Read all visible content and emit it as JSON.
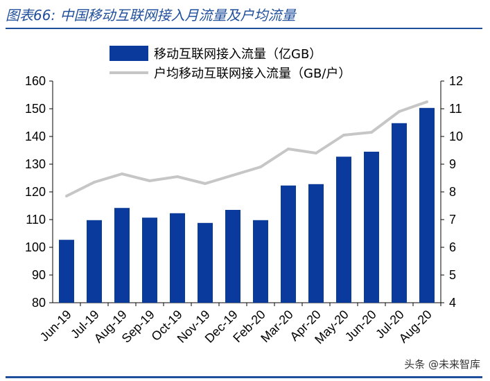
{
  "title": "图表66:  中国移动互联网接入月流量及户均流量",
  "watermark": "头条 @未来智库",
  "colors": {
    "bar": "#0a3a9c",
    "line": "#c6c6c6",
    "title": "#1f4e9b"
  },
  "chart_data": {
    "type": "bar",
    "categories": [
      "Jun-19",
      "Jul-19",
      "Aug-19",
      "Sep-19",
      "Oct-19",
      "Nov-19",
      "Dec-19",
      "Feb-20",
      "Mar-20",
      "Apr-20",
      "May-20",
      "Jun-20",
      "Jul-20",
      "Aug-20"
    ],
    "series": [
      {
        "name": "移动互联网接入流量（亿GB）",
        "type": "bar",
        "axis": "left",
        "values": [
          102.7,
          109.8,
          114.2,
          110.7,
          112.3,
          108.8,
          113.5,
          109.8,
          122.3,
          122.8,
          132.7,
          134.5,
          144.8,
          150.3
        ]
      },
      {
        "name": "户均移动互联网接入流量（GB/户）",
        "type": "line",
        "axis": "right",
        "values": [
          7.85,
          8.35,
          8.65,
          8.4,
          8.55,
          8.3,
          8.6,
          8.9,
          9.55,
          9.4,
          10.05,
          10.15,
          10.9,
          11.25
        ]
      }
    ],
    "y_left": {
      "ylim": [
        80,
        160
      ],
      "ticks": [
        "80",
        "90",
        "100",
        "110",
        "120",
        "130",
        "140",
        "150",
        "160"
      ]
    },
    "y_right": {
      "ylim": [
        4,
        12
      ],
      "ticks": [
        "4",
        "5",
        "6",
        "7",
        "8",
        "9",
        "10",
        "11",
        "12"
      ]
    },
    "legend_position": "top-center",
    "grid": false
  }
}
